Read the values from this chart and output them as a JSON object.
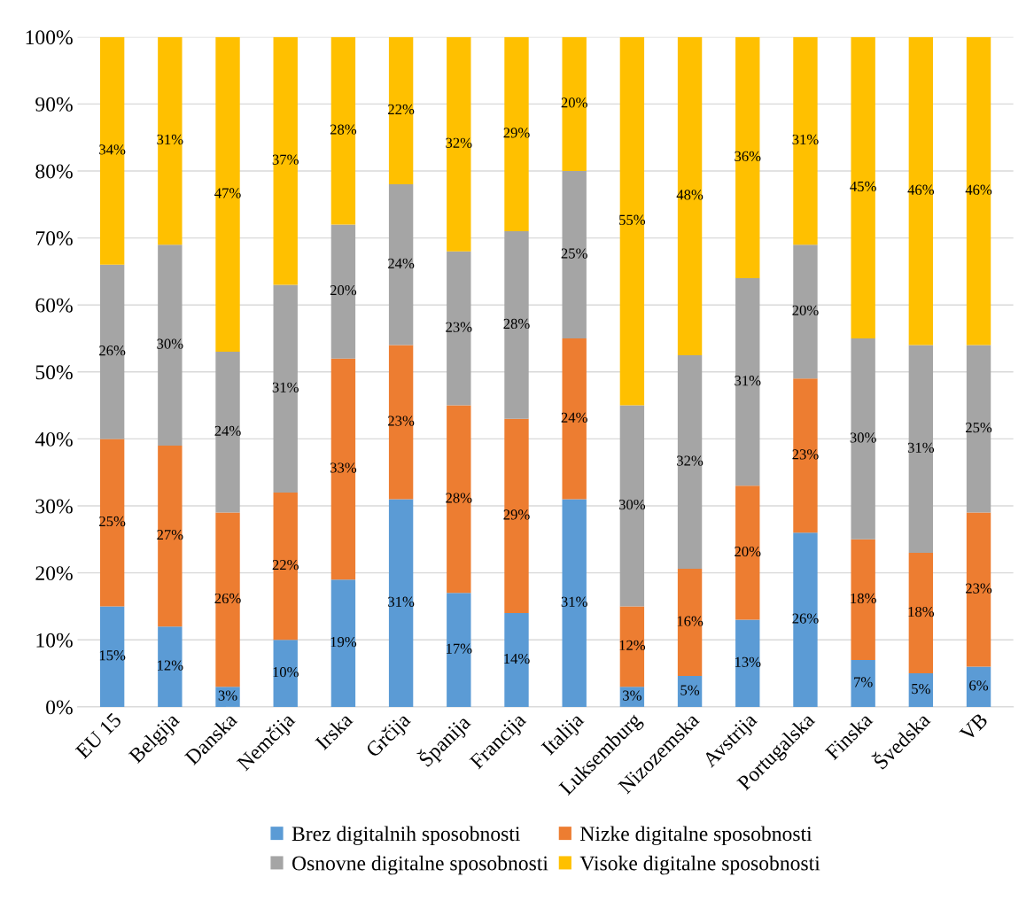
{
  "chart_data": {
    "type": "bar",
    "stacked": true,
    "categories": [
      "EU 15",
      "Belgija",
      "Danska",
      "Nemčija",
      "Irska",
      "Grčija",
      "Španija",
      "Francija",
      "Italija",
      "Luksemburg",
      "Nizozemska",
      "Avstrija",
      "Portugalska",
      "Finska",
      "Švedska",
      "VB"
    ],
    "series": [
      {
        "name": "Brez digitalnih sposobnosti",
        "color": "#5b9bd5",
        "values": [
          15,
          12,
          3,
          10,
          19,
          31,
          17,
          14,
          31,
          3,
          4.6,
          13,
          26,
          7,
          5,
          6
        ],
        "value_labels": [
          "15%",
          "12%",
          "3%",
          "10%",
          "19%",
          "31%",
          "17%",
          "14%",
          "31%",
          "3%",
          "5%",
          "13%",
          "26%",
          "7%",
          "5%",
          "6%"
        ]
      },
      {
        "name": "Nizke digitalne sposobnosti",
        "color": "#ed7d31",
        "values": [
          25,
          27,
          26,
          22,
          33,
          23,
          28,
          29,
          24,
          12,
          16,
          20,
          23,
          18,
          18,
          23
        ],
        "value_labels": [
          "25%",
          "27%",
          "26%",
          "22%",
          "33%",
          "23%",
          "28%",
          "29%",
          "24%",
          "12%",
          "16%",
          "20%",
          "23%",
          "18%",
          "18%",
          "23%"
        ]
      },
      {
        "name": "Osnovne digitalne sposobnosti",
        "color": "#a5a5a5",
        "values": [
          26,
          30,
          24,
          31,
          20,
          24,
          23,
          28,
          25,
          30,
          31.9,
          31,
          20,
          30,
          31,
          25
        ],
        "value_labels": [
          "26%",
          "30%",
          "24%",
          "31%",
          "20%",
          "24%",
          "23%",
          "28%",
          "25%",
          "30%",
          "32%",
          "31%",
          "20%",
          "30%",
          "31%",
          "25%"
        ]
      },
      {
        "name": "Visoke digitalne sposobnosti",
        "color": "#ffc000",
        "values": [
          34,
          31,
          47,
          37,
          28,
          22,
          32,
          29,
          20,
          55,
          47.5,
          36,
          31,
          45,
          46,
          46
        ],
        "value_labels": [
          "34%",
          "31%",
          "47%",
          "37%",
          "28%",
          "22%",
          "32%",
          "29%",
          "20%",
          "55%",
          "48%",
          "36%",
          "31%",
          "45%",
          "46%",
          "46%"
        ]
      }
    ],
    "ylim": [
      0,
      100
    ],
    "yticks": [
      {
        "value": 0,
        "label": "0%"
      },
      {
        "value": 10,
        "label": "10%"
      },
      {
        "value": 20,
        "label": "20%"
      },
      {
        "value": 30,
        "label": "30%"
      },
      {
        "value": 40,
        "label": "40%"
      },
      {
        "value": 50,
        "label": "50%"
      },
      {
        "value": 60,
        "label": "60%"
      },
      {
        "value": 70,
        "label": "70%"
      },
      {
        "value": 80,
        "label": "80%"
      },
      {
        "value": 90,
        "label": "90%"
      },
      {
        "value": 100,
        "label": "100%"
      }
    ],
    "grid": "y",
    "legend": "bottom"
  }
}
